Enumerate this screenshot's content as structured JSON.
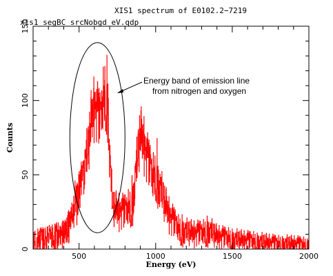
{
  "chart_data": {
    "type": "line",
    "title": "XIS1 spectrum of E0102.2−7219",
    "subtitle": "xis1_segBC_srcNobgd_eV.qdp",
    "xlabel": "Energy (eV)",
    "ylabel": "Counts",
    "xlim": [
      200,
      2000
    ],
    "ylim": [
      0,
      150
    ],
    "xticks": [
      500,
      1000,
      1500,
      2000
    ],
    "yticks": [
      0,
      50,
      100,
      150
    ],
    "grid": false,
    "series_color": "#ff0000",
    "envelope": {
      "x": [
        200,
        300,
        400,
        450,
        500,
        530,
        560,
        580,
        600,
        620,
        640,
        660,
        670,
        680,
        690,
        700,
        720,
        750,
        800,
        850,
        880,
        900,
        920,
        940,
        960,
        980,
        1000,
        1030,
        1060,
        1100,
        1150,
        1200,
        1250,
        1300,
        1350,
        1400,
        1500,
        1600,
        1700,
        1800,
        1900,
        2000
      ],
      "y": [
        5,
        7,
        10,
        18,
        36,
        50,
        66,
        85,
        95,
        90,
        84,
        100,
        105,
        100,
        95,
        62,
        28,
        25,
        24,
        30,
        58,
        76,
        72,
        62,
        55,
        47,
        50,
        40,
        30,
        20,
        13,
        11,
        10,
        10,
        12,
        8,
        6,
        5,
        4,
        3,
        3,
        2
      ]
    },
    "noise_amplitude": 0.55,
    "annotations": [
      {
        "lines": [
          "Energy band of emission line",
          "from nitrogen and oxygen"
        ],
        "ellipse_center": [
          620,
          75
        ],
        "ellipse_half_width_ev": 180,
        "ellipse_half_height_counts": 64
      }
    ]
  }
}
